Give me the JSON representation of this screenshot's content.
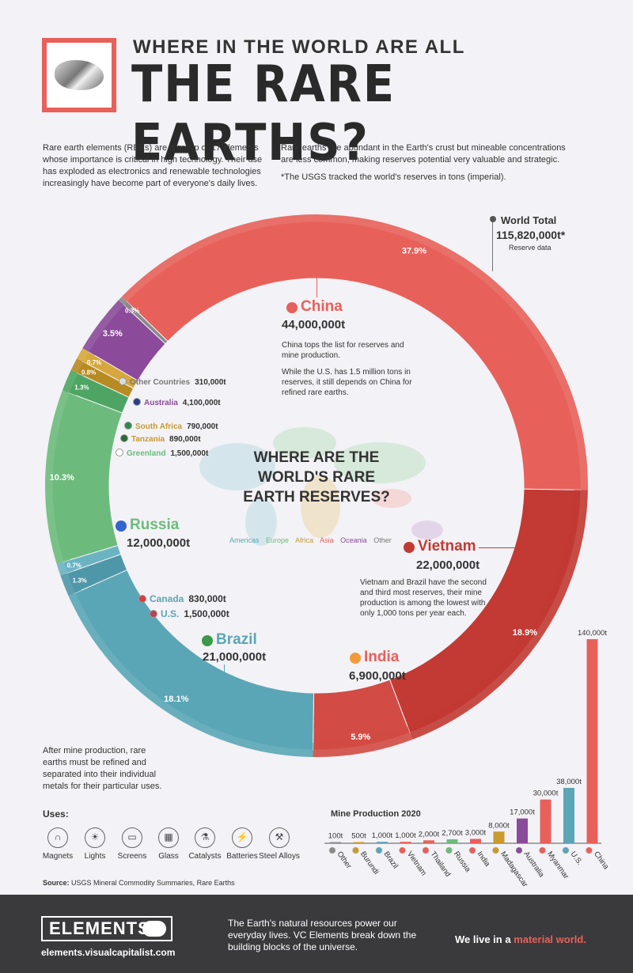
{
  "header": {
    "title_small": "WHERE IN THE WORLD ARE ALL",
    "title_big": "THE RARE EARTHS?"
  },
  "intro": {
    "left": "Rare earth elements (REEs) are a group of 17 elements whose importance is critical in high technology. Their use has exploded as electronics and renewable technologies increasingly have become part of everyone's daily lives.",
    "right": "Rare earths are abundant in the Earth's crust but mineable concentrations are less common, making reserves potential very valuable and strategic.",
    "note": "*The USGS tracked the world's reserves in tons (imperial)."
  },
  "world_total": {
    "label": "World Total",
    "value": "115,820,000t*",
    "sub": "Reserve data"
  },
  "center": {
    "question": "WHERE ARE THE WORLD'S RARE EARTH RESERVES?",
    "legend": [
      {
        "name": "Americas",
        "color": "#5aa6b6"
      },
      {
        "name": "Europe",
        "color": "#6dbb7c"
      },
      {
        "name": "Africa",
        "color": "#c99a2e"
      },
      {
        "name": "Asia",
        "color": "#e8605a"
      },
      {
        "name": "Oceania",
        "color": "#8b4a9a"
      },
      {
        "name": "Other",
        "color": "#777777"
      }
    ]
  },
  "callouts": {
    "china": {
      "name": "China",
      "value": "44,000,000t",
      "note1": "China tops the list for reserves and mine production.",
      "note2": "While the U.S. has 1.5 million tons in reserves, it still depends on China for refined rare earths."
    },
    "vietnam": {
      "name": "Vietnam",
      "value": "22,000,000t",
      "note": "Vietnam and Brazil have the second and third most reserves, their mine production is among the lowest with only 1,000 tons per year each."
    },
    "russia": {
      "name": "Russia",
      "value": "12,000,000t"
    },
    "brazil": {
      "name": "Brazil",
      "value": "21,000,000t"
    },
    "india": {
      "name": "India",
      "value": "6,900,000t"
    },
    "small": [
      {
        "name": "Other Countries",
        "value": "310,000t",
        "color": "#777777"
      },
      {
        "name": "Australia",
        "value": "4,100,000t",
        "color": "#8b4a9a"
      },
      {
        "name": "South Africa",
        "value": "790,000t",
        "color": "#c99a2e"
      },
      {
        "name": "Tanzania",
        "value": "890,000t",
        "color": "#c99a2e"
      },
      {
        "name": "Greenland",
        "value": "1,500,000t",
        "color": "#6dbb7c"
      },
      {
        "name": "Canada",
        "value": "830,000t",
        "color": "#5aa6b6"
      },
      {
        "name": "U.S.",
        "value": "1,500,000t",
        "color": "#5aa6b6"
      }
    ]
  },
  "after_text": "After mine production, rare earths must be refined and separated into their individual metals for their particular uses.",
  "uses": {
    "title": "Uses:",
    "items": [
      "Magnets",
      "Lights",
      "Screens",
      "Glass",
      "Catalysts",
      "Batteries",
      "Steel Alloys"
    ]
  },
  "source": {
    "label": "Source:",
    "text": "USGS Mineral Commodity Summaries, Rare Earths"
  },
  "footer": {
    "brand": "ELEMENTS",
    "url": "elements.visualcapitalist.com",
    "mid": "The Earth's natural resources power our everyday lives. VC Elements break down the building blocks of the universe.",
    "right_a": "We live in a ",
    "right_b": "material world."
  },
  "chart_data": [
    {
      "type": "pie",
      "title": "",
      "slices": [
        {
          "label": "China",
          "value": 44000000,
          "pct": "37.9%",
          "color": "#e8605a"
        },
        {
          "label": "Vietnam",
          "value": 22000000,
          "pct": "18.9%",
          "color": "#c23a33"
        },
        {
          "label": "India",
          "value": 6900000,
          "pct": "5.9%",
          "color": "#d24b44"
        },
        {
          "label": "Brazil",
          "value": 21000000,
          "pct": "18.1%",
          "color": "#5aa6b6"
        },
        {
          "label": "U.S.",
          "value": 1500000,
          "pct": "1.3%",
          "color": "#4e97a8"
        },
        {
          "label": "Canada",
          "value": 830000,
          "pct": "0.7%",
          "color": "#6cb3c2"
        },
        {
          "label": "Russia",
          "value": 12000000,
          "pct": "10.3%",
          "color": "#6dbb7c"
        },
        {
          "label": "Greenland",
          "value": 1500000,
          "pct": "1.3%",
          "color": "#4ea563"
        },
        {
          "label": "Tanzania",
          "value": 890000,
          "pct": "0.8%",
          "color": "#b88a22"
        },
        {
          "label": "South Africa",
          "value": 790000,
          "pct": "0.7%",
          "color": "#d6a83c"
        },
        {
          "label": "Australia",
          "value": 4100000,
          "pct": "3.5%",
          "color": "#8b4a9a"
        },
        {
          "label": "Other Countries",
          "value": 310000,
          "pct": "0.3%",
          "color": "#8a8a8a"
        }
      ]
    },
    {
      "type": "bar",
      "title": "Mine Production 2020",
      "categories": [
        "Other",
        "Burundi",
        "Brazil",
        "Vietnam",
        "Thailand",
        "Russia",
        "India",
        "Madagascar",
        "Australia",
        "Myanmar",
        "U.S.",
        "China"
      ],
      "values": [
        100,
        500,
        1000,
        1000,
        2000,
        2700,
        3000,
        8000,
        17000,
        30000,
        38000,
        140000
      ],
      "labels": [
        "100t",
        "500t",
        "1,000t",
        "1,000t",
        "2,000t",
        "2,700t",
        "3,000t",
        "8,000t",
        "17,000t",
        "30,000t",
        "38,000t",
        "140,000t"
      ],
      "colors": [
        "#8a8a8a",
        "#c99a2e",
        "#5aa6b6",
        "#e8605a",
        "#e8605a",
        "#6dbb7c",
        "#e8605a",
        "#c99a2e",
        "#8b4a9a",
        "#e8605a",
        "#5aa6b6",
        "#e8605a"
      ]
    }
  ]
}
